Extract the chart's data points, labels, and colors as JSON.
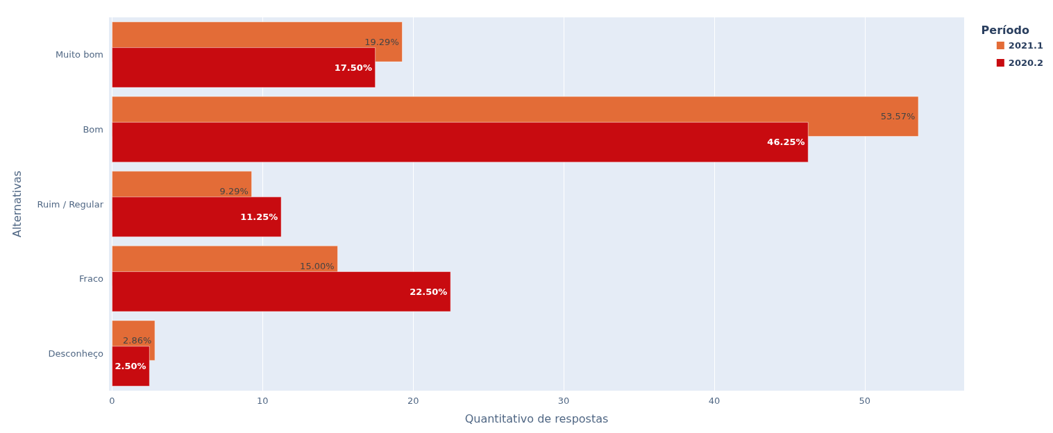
{
  "chart_data": {
    "type": "bar",
    "orientation": "horizontal",
    "xlabel": "Quantitativo de respostas",
    "ylabel": "Alternativas",
    "legend_title": "Período",
    "legend": "top right",
    "grid": "x",
    "categories": [
      "Muito bom",
      "Bom",
      "Ruim / Regular",
      "Fraco",
      "Desconheço"
    ],
    "series": [
      {
        "name": "2021.1",
        "color": "#e36c37",
        "values": [
          19.29,
          53.57,
          9.29,
          15.0,
          2.86
        ],
        "value_labels": [
          "19.29%",
          "53.57%",
          "9.29%",
          "15.00%",
          "2.86%"
        ]
      },
      {
        "name": "2020.2",
        "color": "#c80b10",
        "values": [
          17.5,
          46.25,
          11.25,
          22.5,
          2.5
        ],
        "value_labels": [
          "17.50%",
          "46.25%",
          "11.25%",
          "22.50%",
          "2.50%"
        ]
      }
    ],
    "xlim": [
      -0.2,
      56.6
    ],
    "xticks": [
      0,
      10,
      20,
      30,
      40,
      50
    ]
  }
}
